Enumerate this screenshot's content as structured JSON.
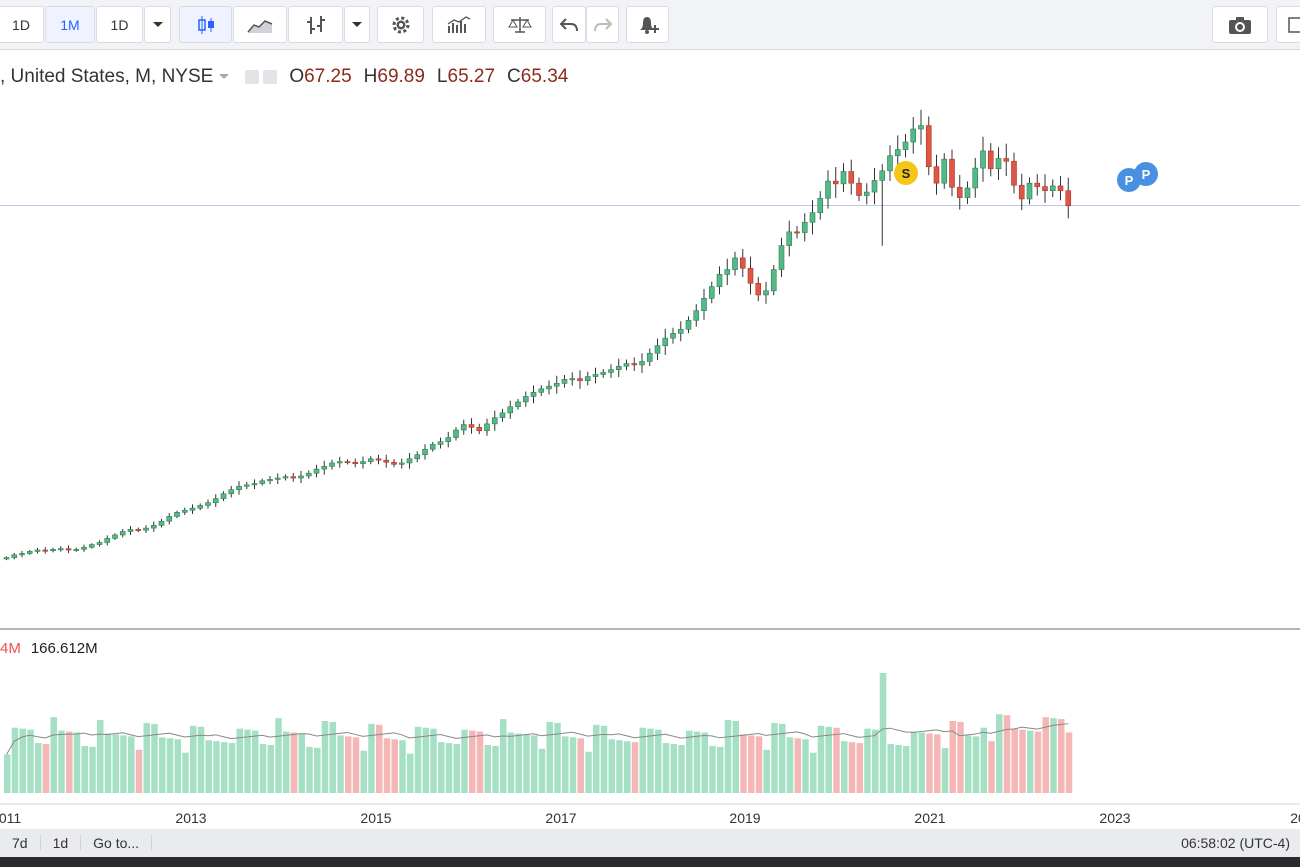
{
  "toolbar": {
    "interval_1": "1D",
    "interval_2": "1M",
    "interval_3": "1D",
    "icons": [
      "chevron-down-icon",
      "candles-icon",
      "area-chart-icon",
      "bars-icon",
      "chevron-down-icon",
      "gear-icon",
      "indicators-icon",
      "compare-scale-icon",
      "undo-icon",
      "redo-icon",
      "alert-icon",
      "camera-icon",
      "fullscreen-icon"
    ]
  },
  "legend": {
    "symbol": ", United States, M, NYSE",
    "o_label": "O",
    "o_value": "67.25",
    "h_label": "H",
    "h_value": "69.89",
    "l_label": "L",
    "l_value": "65.27",
    "c_label": "C",
    "c_value": "65.34"
  },
  "volume_legend": {
    "ma_value": "4M",
    "volume_value": "166.612M"
  },
  "x_axis_labels": [
    "011",
    "2013",
    "2015",
    "2017",
    "2019",
    "2021",
    "2023",
    "20"
  ],
  "markers": [
    {
      "label": "S",
      "color": "#f5c518"
    },
    {
      "label": "P",
      "color": "#4a90e2"
    },
    {
      "label": "P",
      "color": "#4a90e2"
    }
  ],
  "colors": {
    "up": "#26a69a",
    "up_fill": "#53b987",
    "down": "#ef5350",
    "down_fill": "#e05545",
    "vol_up": "#a5e0c5",
    "vol_down": "#f5b7b5",
    "price_line": "#b7c9e6"
  },
  "chart_data": {
    "type": "candlestick",
    "timeframe": "M",
    "x_range": [
      "2010-10",
      "2023-08"
    ],
    "y_range": [
      10,
      80
    ],
    "last_close": 65.34,
    "series_close": [
      14.0,
      14.4,
      14.6,
      14.9,
      15.1,
      15.0,
      15.2,
      15.3,
      15.1,
      15.2,
      15.5,
      15.9,
      16.2,
      16.8,
      17.3,
      17.8,
      18.1,
      18.0,
      18.3,
      18.7,
      19.3,
      20.0,
      20.6,
      20.9,
      21.2,
      21.6,
      22.0,
      22.6,
      23.3,
      23.9,
      24.4,
      24.6,
      24.8,
      25.2,
      25.4,
      25.6,
      25.8,
      25.6,
      25.9,
      26.3,
      26.9,
      27.3,
      27.8,
      28.0,
      27.9,
      27.7,
      28.0,
      28.4,
      28.2,
      27.9,
      27.6,
      27.8,
      28.4,
      29.0,
      29.8,
      30.5,
      30.9,
      31.5,
      32.6,
      33.4,
      33.0,
      32.5,
      33.5,
      34.4,
      35.1,
      36.0,
      36.7,
      37.5,
      38.1,
      38.6,
      39.0,
      39.4,
      40.0,
      40.1,
      39.8,
      40.4,
      40.7,
      41.0,
      41.4,
      41.9,
      42.3,
      42.1,
      42.6,
      43.8,
      44.9,
      46.0,
      46.7,
      47.3,
      48.6,
      50.0,
      51.8,
      53.5,
      55.3,
      56.0,
      57.7,
      56.2,
      54.0,
      52.3,
      52.9,
      56.0,
      59.5,
      61.5,
      61.4,
      62.9,
      64.3,
      66.4,
      68.9,
      68.5,
      70.3,
      68.6,
      66.8,
      67.3,
      69.0,
      70.4,
      72.6,
      73.5,
      74.6,
      76.5,
      77.0,
      71.0,
      68.6,
      72.1,
      68.0,
      66.5,
      67.9,
      70.8,
      73.3,
      70.7,
      72.2,
      71.8,
      68.3,
      66.3,
      68.6,
      68.1,
      67.5,
      68.2,
      67.5,
      65.3
    ]
  }
}
